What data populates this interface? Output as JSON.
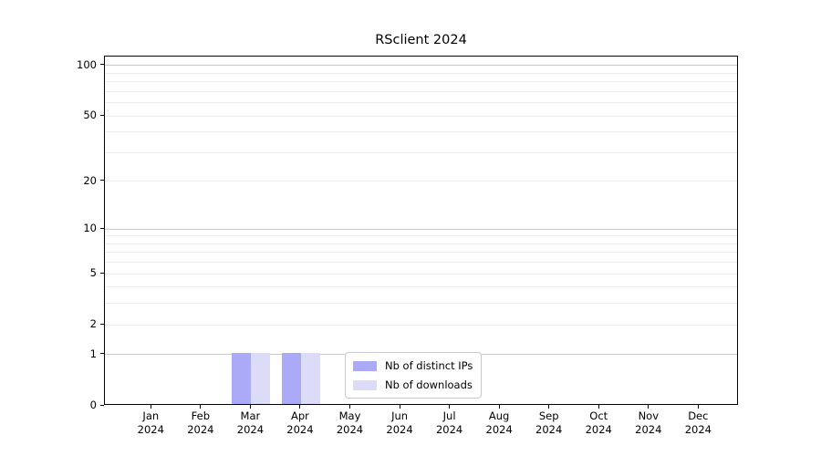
{
  "chart_data": {
    "type": "bar",
    "title": "RSclient 2024",
    "categories": [
      "Jan 2024",
      "Feb 2024",
      "Mar 2024",
      "Apr 2024",
      "May 2024",
      "Jun 2024",
      "Jul 2024",
      "Aug 2024",
      "Sep 2024",
      "Oct 2024",
      "Nov 2024",
      "Dec 2024"
    ],
    "series": [
      {
        "name": "Nb of distinct IPs",
        "color": "#aaaaf8",
        "values": [
          0,
          0,
          1,
          1,
          0,
          0,
          0,
          0,
          0,
          0,
          0,
          0
        ]
      },
      {
        "name": "Nb of downloads",
        "color": "#dcdcf8",
        "values": [
          0,
          0,
          1,
          1,
          0,
          0,
          0,
          0,
          0,
          0,
          0,
          0
        ]
      }
    ],
    "xlabel": "",
    "ylabel": "",
    "yscale": "log1p",
    "ylim": [
      0,
      113
    ],
    "y_tick_values": [
      0,
      1,
      2,
      5,
      10,
      20,
      50,
      100
    ],
    "y_tick_labels": [
      "0",
      "1",
      "2",
      "5",
      "10",
      "20",
      "50",
      "100"
    ],
    "y_major_gridlines": [
      1,
      10,
      100
    ],
    "y_minor_gridlines": [
      2,
      3,
      4,
      5,
      6,
      7,
      8,
      9,
      20,
      30,
      40,
      50,
      60,
      70,
      80,
      90
    ],
    "grid": true,
    "legend": {
      "entries": [
        "Nb of distinct IPs",
        "Nb of downloads"
      ],
      "position": "lower-center"
    }
  },
  "colors": {
    "background": "#ffffff",
    "spine": "#000000",
    "grid_major": "#c9c9c9",
    "grid_minor": "#ececec",
    "bar_distinct_ips": "#aaaaf8",
    "bar_downloads": "#dcdcf8",
    "legend_border": "#c9c9c9",
    "text": "#000000"
  }
}
